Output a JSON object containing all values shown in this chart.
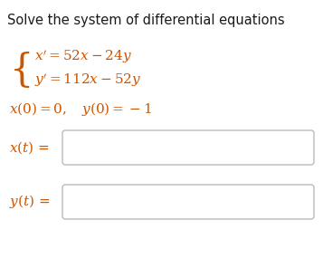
{
  "title": "Solve the system of differential equations",
  "title_fontsize": 10.5,
  "title_color": "#1a1a1a",
  "background_color": "#ffffff",
  "math_color": "#cc5500",
  "box_edge_color": "#bbbbbb",
  "box_fill": "#ffffff",
  "fig_width": 3.57,
  "fig_height": 2.85,
  "dpi": 100
}
